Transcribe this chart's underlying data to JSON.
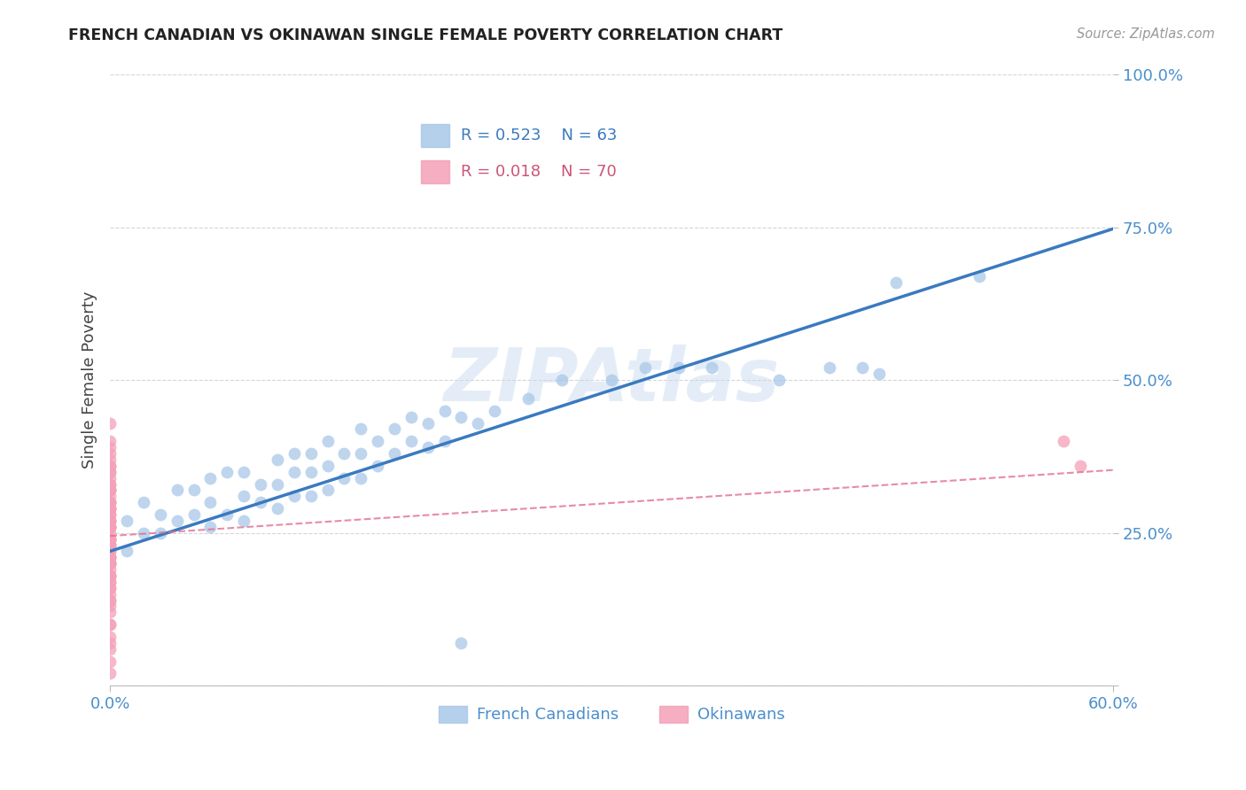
{
  "title": "FRENCH CANADIAN VS OKINAWAN SINGLE FEMALE POVERTY CORRELATION CHART",
  "source": "Source: ZipAtlas.com",
  "ylabel": "Single Female Poverty",
  "xlim": [
    0.0,
    0.6
  ],
  "ylim": [
    0.0,
    1.0
  ],
  "ytick_positions": [
    0.0,
    0.25,
    0.5,
    0.75,
    1.0
  ],
  "ytick_labels": [
    "",
    "25.0%",
    "50.0%",
    "75.0%",
    "100.0%"
  ],
  "legend_blue_r": "R = 0.523",
  "legend_blue_n": "N = 63",
  "legend_pink_r": "R = 0.018",
  "legend_pink_n": "N = 70",
  "legend_label_blue": "French Canadians",
  "legend_label_pink": "Okinawans",
  "blue_color": "#a8c8e8",
  "blue_line_color": "#3a7abf",
  "pink_color": "#f4a0b8",
  "pink_line_color": "#e07090",
  "watermark": "ZIPAtlas",
  "blue_R": 0.523,
  "blue_intercept": 0.22,
  "blue_slope": 0.88,
  "pink_R": 0.018,
  "pink_intercept": 0.245,
  "pink_slope": 0.18,
  "blue_points_x": [
    0.01,
    0.01,
    0.02,
    0.02,
    0.03,
    0.03,
    0.04,
    0.04,
    0.05,
    0.05,
    0.06,
    0.06,
    0.06,
    0.07,
    0.07,
    0.08,
    0.08,
    0.08,
    0.09,
    0.09,
    0.1,
    0.1,
    0.1,
    0.11,
    0.11,
    0.11,
    0.12,
    0.12,
    0.12,
    0.13,
    0.13,
    0.13,
    0.14,
    0.14,
    0.15,
    0.15,
    0.15,
    0.16,
    0.16,
    0.17,
    0.17,
    0.18,
    0.18,
    0.19,
    0.19,
    0.2,
    0.2,
    0.21,
    0.22,
    0.23,
    0.25,
    0.27,
    0.3,
    0.32,
    0.34,
    0.36,
    0.4,
    0.43,
    0.45,
    0.46,
    0.47,
    0.52,
    0.21
  ],
  "blue_points_y": [
    0.27,
    0.22,
    0.3,
    0.25,
    0.25,
    0.28,
    0.27,
    0.32,
    0.28,
    0.32,
    0.26,
    0.3,
    0.34,
    0.28,
    0.35,
    0.27,
    0.31,
    0.35,
    0.3,
    0.33,
    0.29,
    0.33,
    0.37,
    0.31,
    0.35,
    0.38,
    0.31,
    0.35,
    0.38,
    0.32,
    0.36,
    0.4,
    0.34,
    0.38,
    0.34,
    0.38,
    0.42,
    0.36,
    0.4,
    0.38,
    0.42,
    0.4,
    0.44,
    0.39,
    0.43,
    0.4,
    0.45,
    0.44,
    0.43,
    0.45,
    0.47,
    0.5,
    0.5,
    0.52,
    0.52,
    0.52,
    0.5,
    0.52,
    0.52,
    0.51,
    0.66,
    0.67,
    0.07
  ],
  "pink_points_x": [
    0.0,
    0.0,
    0.0,
    0.0,
    0.0,
    0.0,
    0.0,
    0.0,
    0.0,
    0.0,
    0.0,
    0.0,
    0.0,
    0.0,
    0.0,
    0.0,
    0.0,
    0.0,
    0.0,
    0.0,
    0.0,
    0.0,
    0.0,
    0.0,
    0.0,
    0.0,
    0.0,
    0.0,
    0.0,
    0.0,
    0.0,
    0.0,
    0.0,
    0.0,
    0.0,
    0.0,
    0.0,
    0.0,
    0.0,
    0.0,
    0.0,
    0.0,
    0.0,
    0.0,
    0.0,
    0.0,
    0.0,
    0.0,
    0.0,
    0.0,
    0.0,
    0.0,
    0.0,
    0.0,
    0.0,
    0.0,
    0.0,
    0.0,
    0.0,
    0.0,
    0.0,
    0.0,
    0.0,
    0.0,
    0.0,
    0.0,
    0.0,
    0.0,
    0.57,
    0.58
  ],
  "pink_points_y": [
    0.43,
    0.4,
    0.37,
    0.35,
    0.32,
    0.3,
    0.28,
    0.26,
    0.24,
    0.22,
    0.2,
    0.18,
    0.16,
    0.14,
    0.12,
    0.1,
    0.08,
    0.06,
    0.04,
    0.02,
    0.34,
    0.31,
    0.28,
    0.25,
    0.22,
    0.19,
    0.16,
    0.13,
    0.1,
    0.07,
    0.36,
    0.33,
    0.29,
    0.26,
    0.23,
    0.2,
    0.17,
    0.14,
    0.38,
    0.35,
    0.32,
    0.27,
    0.24,
    0.21,
    0.3,
    0.27,
    0.24,
    0.21,
    0.18,
    0.33,
    0.3,
    0.27,
    0.24,
    0.21,
    0.18,
    0.15,
    0.26,
    0.23,
    0.2,
    0.17,
    0.29,
    0.26,
    0.23,
    0.2,
    0.32,
    0.29,
    0.36,
    0.39,
    0.4,
    0.36
  ]
}
